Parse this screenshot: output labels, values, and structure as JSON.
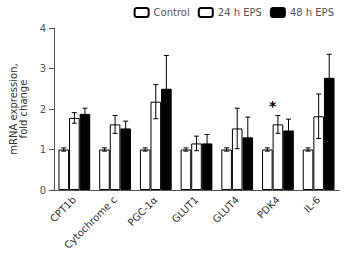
{
  "chart_data": {
    "type": "bar",
    "categories": [
      "CPT1b",
      "Cytochrome c",
      "PGC-1α",
      "GLUT1",
      "GLUT4",
      "PDK4",
      "IL-6"
    ],
    "series": [
      {
        "name": "Control",
        "color": "white",
        "values": [
          1.0,
          1.0,
          1.0,
          1.0,
          1.0,
          1.0,
          1.0
        ],
        "errors": [
          0.04,
          0.04,
          0.04,
          0.04,
          0.04,
          0.04,
          0.04
        ]
      },
      {
        "name": "24 h EPS",
        "color": "none",
        "values": [
          1.78,
          1.62,
          2.18,
          1.15,
          1.52,
          1.62,
          1.82
        ],
        "errors": [
          0.13,
          0.22,
          0.42,
          0.18,
          0.5,
          0.22,
          0.55
        ]
      },
      {
        "name": "48 h EPS",
        "color": "black",
        "values": [
          1.88,
          1.52,
          2.5,
          1.15,
          1.3,
          1.47,
          2.77
        ],
        "errors": [
          0.14,
          0.18,
          0.82,
          0.22,
          0.5,
          0.28,
          0.58
        ]
      }
    ],
    "annotations": [
      {
        "text": "*",
        "category": "PDK4",
        "series": "24 h EPS"
      }
    ],
    "ylabel": "mRNA expression,\nfold change",
    "ylim": [
      0,
      4
    ],
    "yticks": [
      0,
      1,
      2,
      3,
      4
    ],
    "grid": false,
    "legend": "upper right"
  }
}
